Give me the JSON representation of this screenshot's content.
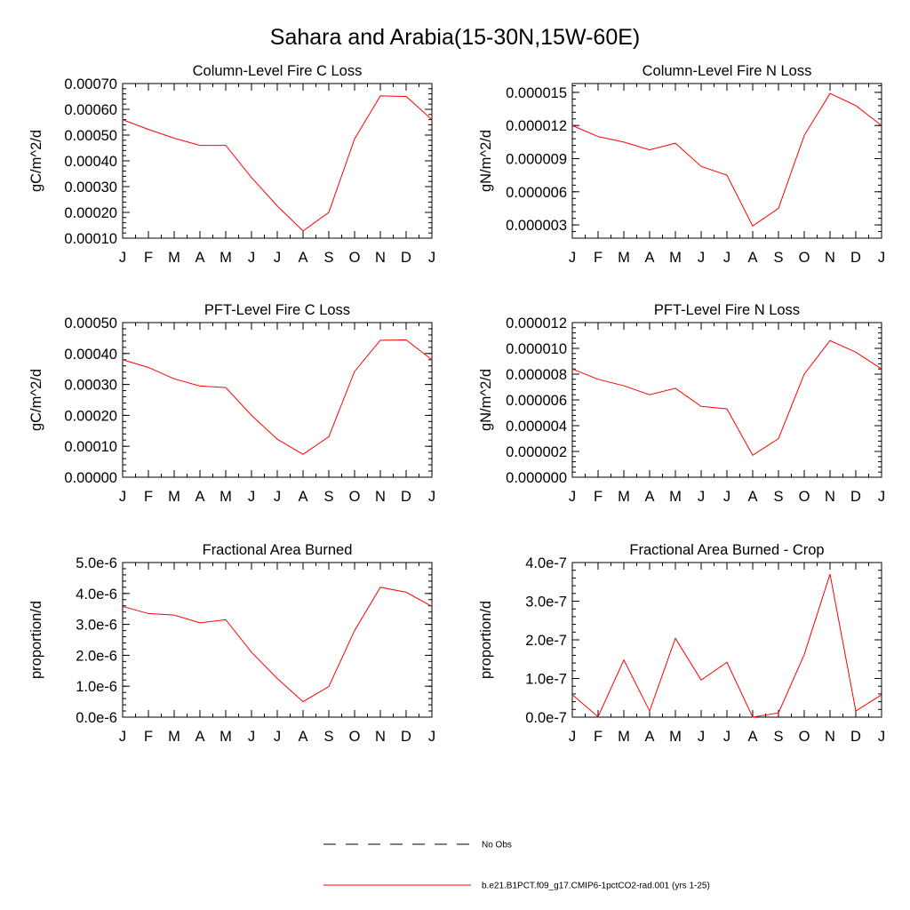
{
  "figure": {
    "title": "Sahara and Arabia(15-30N,15W-60E)"
  },
  "colors": {
    "model": "#ff0000",
    "obs": "#000000",
    "axis": "#000000"
  },
  "legend": {
    "obs_label": "No Obs",
    "model_label": "b.e21.B1PCT.f09_g17.CMIP6-1pctCO2-rad.001 (yrs 1-25)"
  },
  "chart_data": [
    {
      "type": "line",
      "title": "Column-Level Fire C Loss",
      "ylabel": "gC/m^2/d",
      "categories": [
        "J",
        "F",
        "M",
        "A",
        "M",
        "J",
        "J",
        "A",
        "S",
        "O",
        "N",
        "D",
        "J"
      ],
      "yticks": [
        "0.00010",
        "0.00020",
        "0.00030",
        "0.00040",
        "0.00050",
        "0.00060",
        "0.00070"
      ],
      "ytick_values": [
        0.0001,
        0.0002,
        0.0003,
        0.0004,
        0.0005,
        0.0006,
        0.0007
      ],
      "ylim": [
        0.0001,
        0.0007
      ],
      "series": [
        {
          "values": [
            0.00056,
            0.000522,
            0.000488,
            0.00046,
            0.00046,
            0.000335,
            0.000225,
            0.000128,
            0.0002,
            0.000485,
            0.000652,
            0.00065,
            0.00056
          ]
        }
      ]
    },
    {
      "type": "line",
      "title": "Column-Level Fire N Loss",
      "ylabel": "gN/m^2/d",
      "categories": [
        "J",
        "F",
        "M",
        "A",
        "M",
        "J",
        "J",
        "A",
        "S",
        "O",
        "N",
        "D",
        "J"
      ],
      "yticks": [
        "0.000003",
        "0.000006",
        "0.000009",
        "0.000012",
        "0.000015"
      ],
      "ytick_values": [
        3e-06,
        6e-06,
        9e-06,
        1.2e-05,
        1.5e-05
      ],
      "ylim": [
        1.8e-06,
        1.58e-05
      ],
      "series": [
        {
          "values": [
            1.2e-05,
            1.1e-05,
            1.05e-05,
            9.8e-06,
            1.04e-05,
            8.3e-06,
            7.5e-06,
            2.9e-06,
            4.5e-06,
            1.11e-05,
            1.49e-05,
            1.38e-05,
            1.2e-05
          ]
        }
      ]
    },
    {
      "type": "line",
      "title": "PFT-Level Fire C Loss",
      "ylabel": "gC/m^2/d",
      "categories": [
        "J",
        "F",
        "M",
        "A",
        "M",
        "J",
        "J",
        "A",
        "S",
        "O",
        "N",
        "D",
        "J"
      ],
      "yticks": [
        "0.00000",
        "0.00010",
        "0.00020",
        "0.00030",
        "0.00040",
        "0.00050"
      ],
      "ytick_values": [
        0,
        0.0001,
        0.0002,
        0.0003,
        0.0004,
        0.0005
      ],
      "ylim": [
        0,
        0.0005
      ],
      "series": [
        {
          "values": [
            0.00038,
            0.000355,
            0.000318,
            0.000295,
            0.00029,
            0.0002,
            0.000123,
            7.4e-05,
            0.000131,
            0.000342,
            0.000443,
            0.000444,
            0.00038
          ]
        }
      ]
    },
    {
      "type": "line",
      "title": "PFT-Level Fire N Loss",
      "ylabel": "gN/m^2/d",
      "categories": [
        "J",
        "F",
        "M",
        "A",
        "M",
        "J",
        "J",
        "A",
        "S",
        "O",
        "N",
        "D",
        "J"
      ],
      "yticks": [
        "0.000000",
        "0.000002",
        "0.000004",
        "0.000006",
        "0.000008",
        "0.000010",
        "0.000012"
      ],
      "ytick_values": [
        0,
        2e-06,
        4e-06,
        6e-06,
        8e-06,
        1e-05,
        1.2e-05
      ],
      "ylim": [
        0,
        1.2e-05
      ],
      "series": [
        {
          "values": [
            8.4e-06,
            7.6e-06,
            7.1e-06,
            6.4e-06,
            6.9e-06,
            5.5e-06,
            5.3e-06,
            1.7e-06,
            3e-06,
            8e-06,
            1.06e-05,
            9.7e-06,
            8.4e-06
          ]
        }
      ]
    },
    {
      "type": "line",
      "title": "Fractional Area Burned",
      "ylabel": "proportion/d",
      "categories": [
        "J",
        "F",
        "M",
        "A",
        "M",
        "J",
        "J",
        "A",
        "S",
        "O",
        "N",
        "D",
        "J"
      ],
      "yticks": [
        "0.0e-6",
        "1.0e-6",
        "2.0e-6",
        "3.0e-6",
        "4.0e-6",
        "5.0e-6"
      ],
      "ytick_values": [
        0,
        1e-06,
        2e-06,
        3e-06,
        4e-06,
        5e-06
      ],
      "ylim": [
        0,
        5e-06
      ],
      "series": [
        {
          "values": [
            3.58e-06,
            3.35e-06,
            3.3e-06,
            3.05e-06,
            3.15e-06,
            2.1e-06,
            1.25e-06,
            5e-07,
            9.9e-07,
            2.8e-06,
            4.2e-06,
            4.04e-06,
            3.58e-06
          ]
        }
      ]
    },
    {
      "type": "line",
      "title": "Fractional Area Burned - Crop",
      "ylabel": "proportion/d",
      "categories": [
        "J",
        "F",
        "M",
        "A",
        "M",
        "J",
        "J",
        "A",
        "S",
        "O",
        "N",
        "D",
        "J"
      ],
      "yticks": [
        "0.0e-7",
        "1.0e-7",
        "2.0e-7",
        "3.0e-7",
        "4.0e-7"
      ],
      "ytick_values": [
        0,
        1e-07,
        2e-07,
        3e-07,
        4e-07
      ],
      "ylim": [
        0,
        4e-07
      ],
      "series": [
        {
          "values": [
            5.8e-08,
            1e-09,
            1.48e-07,
            1.6e-08,
            2.04e-07,
            9.6e-08,
            1.42e-07,
            0.0,
            1.1e-08,
            1.62e-07,
            3.7e-07,
            1.6e-08,
            5.8e-08
          ]
        }
      ]
    }
  ]
}
